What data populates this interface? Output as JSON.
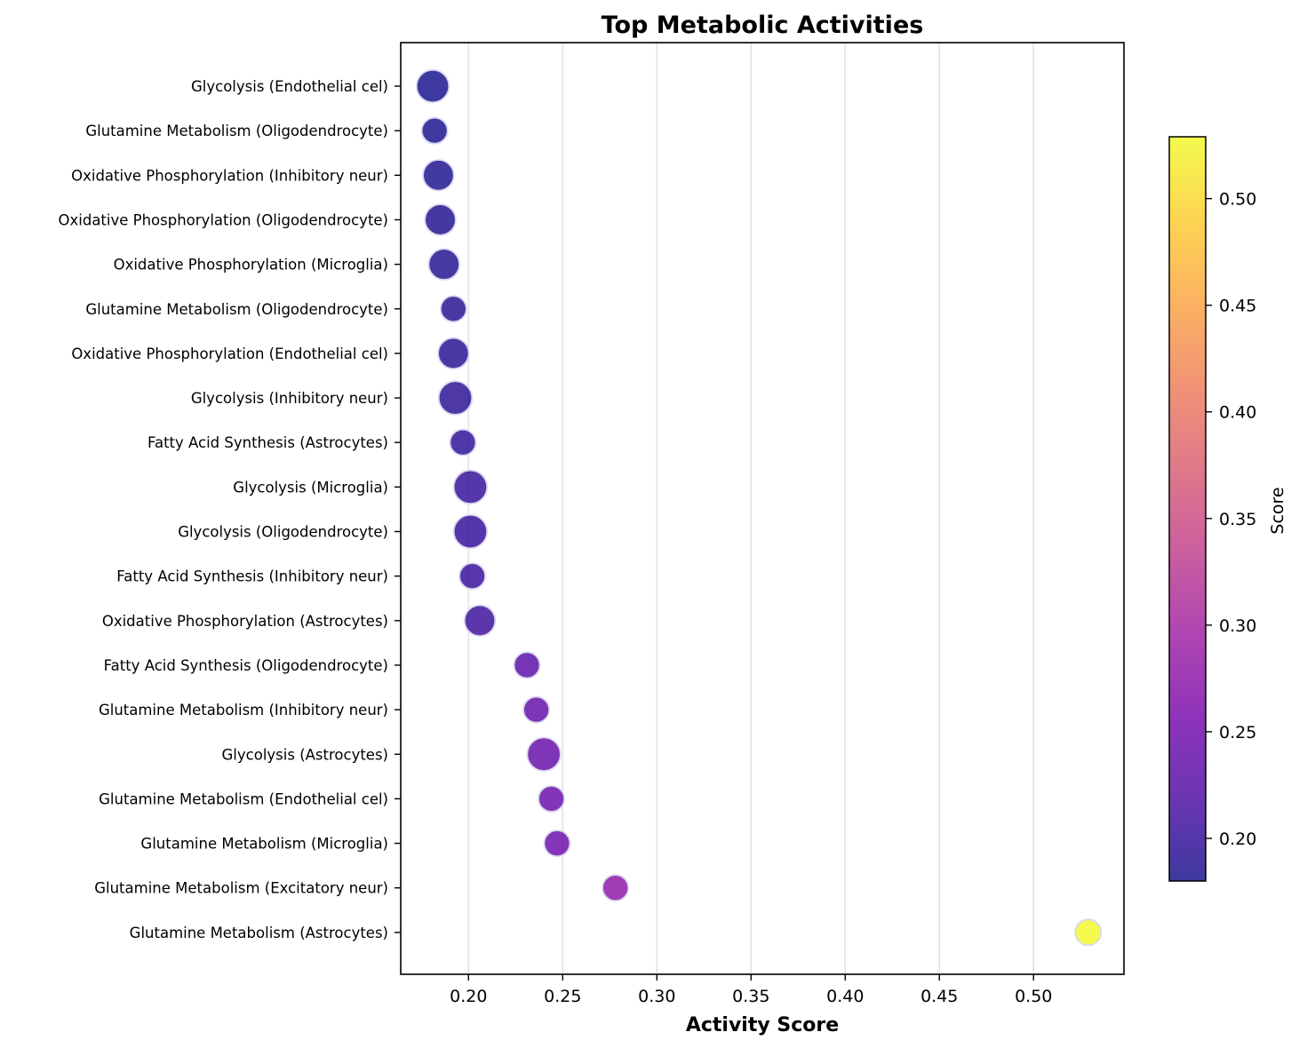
{
  "chart_data": {
    "type": "scatter",
    "title": "Top Metabolic Activities",
    "xlabel": "Activity Score",
    "ylabel": "",
    "xlim": [
      0.164,
      0.548
    ],
    "xticks": [
      0.2,
      0.25,
      0.3,
      0.35,
      0.4,
      0.45,
      0.5
    ],
    "xtick_labels": [
      "0.20",
      "0.25",
      "0.30",
      "0.35",
      "0.40",
      "0.45",
      "0.50"
    ],
    "grid": "vertical",
    "size_encoding": "bubble area (relative units)",
    "categories": [
      "Glycolysis (Endothelial cel)",
      "Glutamine Metabolism (Oligodendrocyte)",
      "Oxidative Phosphorylation (Inhibitory neur)",
      "Oxidative Phosphorylation (Oligodendrocyte)",
      "Oxidative Phosphorylation (Microglia)",
      "Glutamine Metabolism (Oligodendrocyte)",
      "Oxidative Phosphorylation (Endothelial cel)",
      "Glycolysis (Inhibitory neur)",
      "Fatty Acid Synthesis (Astrocytes)",
      "Glycolysis (Microglia)",
      "Glycolysis (Oligodendrocyte)",
      "Fatty Acid Synthesis (Inhibitory neur)",
      "Oxidative Phosphorylation (Astrocytes)",
      "Fatty Acid Synthesis (Oligodendrocyte)",
      "Glutamine Metabolism (Inhibitory neur)",
      "Glycolysis (Astrocytes)",
      "Glutamine Metabolism (Endothelial cel)",
      "Glutamine Metabolism (Microglia)",
      "Glutamine Metabolism (Excitatory neur)",
      "Glutamine Metabolism (Astrocytes)"
    ],
    "values": [
      0.181,
      0.182,
      0.184,
      0.185,
      0.187,
      0.192,
      0.192,
      0.193,
      0.197,
      0.201,
      0.201,
      0.202,
      0.206,
      0.231,
      0.236,
      0.24,
      0.244,
      0.247,
      0.278,
      0.529
    ],
    "sizes": [
      19,
      12,
      17,
      17,
      17,
      12,
      17,
      20,
      12,
      20,
      20,
      12,
      17,
      12,
      12,
      20,
      12,
      12,
      12,
      12
    ],
    "colorbar": {
      "label": "Score",
      "range": [
        0.18,
        0.529
      ],
      "ticks": [
        0.2,
        0.25,
        0.3,
        0.35,
        0.4,
        0.45,
        0.5
      ],
      "tick_labels": [
        "0.20",
        "0.25",
        "0.30",
        "0.35",
        "0.40",
        "0.45",
        "0.50"
      ],
      "colormap": "plasma",
      "colormap_stops": [
        "#0d0887",
        "#46039f",
        "#7201a8",
        "#9c179e",
        "#bd3786",
        "#d8576b",
        "#ed7953",
        "#fb9f3a",
        "#fdca26",
        "#f0f921"
      ]
    },
    "marker_opacity": 0.8,
    "marker_edge_color": "#d9d7f0"
  }
}
